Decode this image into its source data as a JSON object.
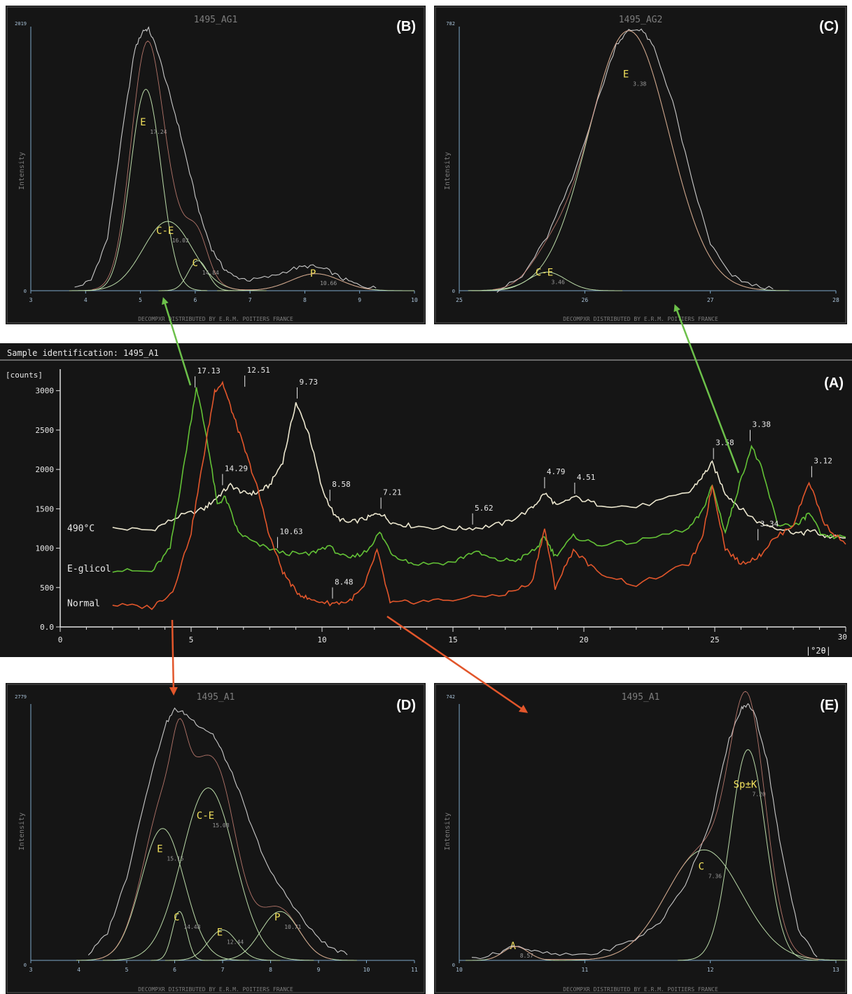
{
  "colors": {
    "background": "#151515",
    "frame": "#cfcfcf",
    "axis": "#7da8c9",
    "axis_text": "#a9c2d8",
    "title_text": "#7d7d7d",
    "peak_label": "#f2e15c",
    "normal": "#e2562b",
    "eglicol": "#63c236",
    "heated": "#ece7cf",
    "fit_curve": "#b9d9a7",
    "orange_arrow": "#e2562b",
    "green_arrow": "#6cc04a"
  },
  "footer_text": "DECOMPXR DISTRIBUTED BY E.R.M. POITIERS FRANCE",
  "chart_data": [
    {
      "id": "A",
      "type": "line",
      "panel_label": "(A)",
      "title": "Sample identification: 1495_A1",
      "ylabel": "[counts]",
      "xlabel": "|°2θ|",
      "xlim": [
        0,
        30
      ],
      "ylim": [
        0,
        3300
      ],
      "x_ticks": [
        0,
        5,
        10,
        15,
        20,
        25,
        30
      ],
      "y_ticks": [
        0,
        500,
        1000,
        1500,
        2000,
        2500,
        3000
      ],
      "y_tick_labels": [
        "0.0",
        "500",
        "1000",
        "1500",
        "2000",
        "2500",
        "3000"
      ],
      "grid": false,
      "series": [
        {
          "name": "490°C",
          "label_y": 1250,
          "x": [
            2,
            3.5,
            4.5,
            5.5,
            6,
            6.5,
            7,
            7.5,
            8,
            8.5,
            9,
            9.5,
            10,
            10.5,
            11,
            11.7,
            12.2,
            12.7,
            13.5,
            15,
            16,
            17,
            18,
            18.5,
            19,
            19.6,
            20.5,
            22,
            24,
            24.5,
            24.9,
            25.4,
            26,
            26.7,
            27.5,
            28.3,
            28.7,
            29.2,
            30
          ],
          "y": [
            1250,
            1230,
            1400,
            1500,
            1650,
            1800,
            1700,
            1700,
            1800,
            2100,
            2850,
            2450,
            1750,
            1400,
            1320,
            1380,
            1450,
            1320,
            1280,
            1250,
            1260,
            1320,
            1500,
            1700,
            1530,
            1650,
            1560,
            1520,
            1700,
            1900,
            2080,
            1700,
            1500,
            1320,
            1250,
            1180,
            1230,
            1150,
            1130
          ]
        },
        {
          "name": "E-glicol",
          "label_y": 740,
          "x": [
            2,
            3.5,
            4.2,
            4.7,
            5.2,
            5.6,
            6,
            6.3,
            6.8,
            7.5,
            8.5,
            9.5,
            10.2,
            11,
            11.7,
            12.2,
            12.7,
            13.5,
            15,
            15.8,
            16.6,
            17.5,
            18.2,
            18.5,
            18.9,
            19.6,
            20.5,
            22,
            24,
            24.5,
            24.9,
            25.4,
            25.8,
            26.4,
            26.8,
            27.4,
            28.2,
            28.6,
            29.1,
            30
          ],
          "y": [
            720,
            700,
            1000,
            2000,
            3050,
            2400,
            1550,
            1650,
            1200,
            1050,
            940,
            920,
            1030,
            860,
            960,
            1200,
            920,
            800,
            820,
            960,
            850,
            850,
            1000,
            1150,
            900,
            1150,
            1050,
            1080,
            1250,
            1450,
            1800,
            1200,
            1650,
            2300,
            2000,
            1300,
            1300,
            1450,
            1150,
            1140
          ]
        },
        {
          "name": "Normal",
          "label_y": 300,
          "x": [
            2,
            3.5,
            4.3,
            5,
            5.5,
            5.9,
            6.2,
            6.6,
            7,
            7.5,
            8,
            8.5,
            9,
            9.5,
            10.3,
            11,
            11.6,
            12.1,
            12.6,
            13.5,
            15,
            17,
            18,
            18.5,
            18.9,
            19.6,
            20.5,
            22,
            24,
            24.5,
            24.9,
            25.4,
            26,
            26.7,
            27.2,
            28,
            28.6,
            29.2,
            30
          ],
          "y": [
            280,
            250,
            450,
            1200,
            2200,
            3000,
            3100,
            2700,
            2300,
            1800,
            1150,
            700,
            450,
            350,
            300,
            320,
            500,
            980,
            300,
            320,
            350,
            420,
            550,
            1250,
            500,
            980,
            700,
            530,
            800,
            1100,
            1800,
            1000,
            800,
            900,
            1100,
            1300,
            1850,
            1300,
            1050
          ]
        }
      ],
      "annotations": [
        {
          "text": "17.13",
          "x": 5.15,
          "y": 3040
        },
        {
          "text": "14.29",
          "x": 6.2,
          "y": 1800
        },
        {
          "text": "12.51",
          "x": 7.05,
          "y": 3050
        },
        {
          "text": "9.73",
          "x": 9.05,
          "y": 2900
        },
        {
          "text": "10.63",
          "x": 8.3,
          "y": 1000
        },
        {
          "text": "8.58",
          "x": 10.3,
          "y": 1600
        },
        {
          "text": "8.48",
          "x": 10.4,
          "y": 360
        },
        {
          "text": "7.21",
          "x": 12.25,
          "y": 1500
        },
        {
          "text": "5.62",
          "x": 15.75,
          "y": 1300
        },
        {
          "text": "4.79",
          "x": 18.5,
          "y": 1760
        },
        {
          "text": "4.51",
          "x": 19.65,
          "y": 1690
        },
        {
          "text": "3.58",
          "x": 24.95,
          "y": 2130
        },
        {
          "text": "3.38",
          "x": 26.35,
          "y": 2360
        },
        {
          "text": "3.34",
          "x": 26.65,
          "y": 1100
        },
        {
          "text": "3.12",
          "x": 28.7,
          "y": 1900
        }
      ]
    },
    {
      "id": "B",
      "type": "line",
      "panel_label": "(B)",
      "title": "1495_AG1",
      "ylabel": "Intensity",
      "y_max_label": "2019",
      "y_min_label": "0",
      "xlim": [
        3,
        10
      ],
      "ylim": [
        0,
        2019
      ],
      "x_ticks": [
        3,
        4,
        5,
        6,
        7,
        8,
        9,
        10
      ],
      "profile": {
        "x": [
          3.8,
          4.1,
          4.4,
          4.7,
          4.9,
          5.05,
          5.15,
          5.3,
          5.5,
          5.7,
          5.9,
          6.1,
          6.3,
          6.5,
          6.7,
          7,
          7.4,
          7.8,
          8.1,
          8.4,
          8.7,
          9,
          9.3
        ],
        "y": [
          20,
          80,
          400,
          1300,
          1850,
          1990,
          2000,
          1850,
          1550,
          1250,
          900,
          560,
          320,
          180,
          110,
          80,
          110,
          170,
          190,
          160,
          90,
          40,
          20
        ]
      },
      "components": [
        {
          "label": "E",
          "value": "17.24",
          "center": 5.1,
          "height": 1540,
          "width": 0.28
        },
        {
          "label": "C-E",
          "value": "16.02",
          "center": 5.5,
          "height": 530,
          "width": 0.45
        },
        {
          "label": "C",
          "value": "14.84",
          "center": 6.05,
          "height": 230,
          "width": 0.18
        },
        {
          "label": "P",
          "value": "10.66",
          "center": 8.2,
          "height": 130,
          "width": 0.45
        }
      ]
    },
    {
      "id": "C",
      "type": "line",
      "panel_label": "(C)",
      "title": "1495_AG2",
      "ylabel": "Intensity",
      "y_max_label": "782",
      "y_min_label": "0",
      "xlim": [
        25,
        28
      ],
      "ylim": [
        0,
        782
      ],
      "x_ticks": [
        25,
        26,
        27,
        28
      ],
      "profile": {
        "x": [
          25.3,
          25.5,
          25.7,
          25.9,
          26.1,
          26.25,
          26.35,
          26.45,
          26.55,
          26.7,
          26.85,
          27,
          27.15,
          27.3,
          27.5
        ],
        "y": [
          0,
          40,
          160,
          330,
          560,
          730,
          770,
          775,
          720,
          560,
          330,
          140,
          50,
          20,
          5
        ]
      },
      "components": [
        {
          "label": "E",
          "value": "3.38",
          "center": 26.35,
          "height": 770,
          "width": 0.32
        },
        {
          "label": "C-E",
          "value": "3.46",
          "center": 25.7,
          "height": 55,
          "width": 0.15
        }
      ]
    },
    {
      "id": "D",
      "type": "line",
      "panel_label": "(D)",
      "title": "1495_A1",
      "ylabel": "Intensity",
      "y_max_label": "2779",
      "y_min_label": "0",
      "xlim": [
        3,
        11
      ],
      "ylim": [
        0,
        2779
      ],
      "x_ticks": [
        3,
        4,
        5,
        6,
        7,
        8,
        9,
        10,
        11
      ],
      "profile": {
        "x": [
          4.2,
          4.6,
          5,
          5.4,
          5.8,
          6,
          6.2,
          6.5,
          6.8,
          7,
          7.3,
          7.6,
          8,
          8.4,
          8.8,
          9.2,
          9.6
        ],
        "y": [
          60,
          300,
          900,
          1800,
          2550,
          2720,
          2680,
          2550,
          2450,
          2250,
          1900,
          1450,
          950,
          650,
          350,
          150,
          60
        ]
      },
      "components": [
        {
          "label": "E",
          "value": "15.15",
          "center": 5.75,
          "height": 1430,
          "width": 0.45
        },
        {
          "label": "C-E",
          "value": "15.08",
          "center": 6.7,
          "height": 1870,
          "width": 0.55
        },
        {
          "label": "C",
          "value": "14.48",
          "center": 6.1,
          "height": 530,
          "width": 0.15
        },
        {
          "label": "E",
          "value": "12.44",
          "center": 7.0,
          "height": 330,
          "width": 0.3
        },
        {
          "label": "P",
          "value": "10.71",
          "center": 8.2,
          "height": 530,
          "width": 0.4
        }
      ]
    },
    {
      "id": "E",
      "type": "line",
      "panel_label": "(E)",
      "title": "1495_A1",
      "ylabel": "Intensity",
      "y_max_label": "742",
      "y_min_label": "0",
      "xlim": [
        10,
        13
      ],
      "ylim": [
        0,
        742
      ],
      "x_ticks": [
        10,
        11,
        12,
        13
      ],
      "profile": {
        "x": [
          10.1,
          10.3,
          10.45,
          10.6,
          10.8,
          11.1,
          11.4,
          11.6,
          11.8,
          12,
          12.15,
          12.25,
          12.3,
          12.35,
          12.45,
          12.55,
          12.7,
          12.85
        ],
        "y": [
          5,
          20,
          45,
          25,
          15,
          20,
          60,
          110,
          220,
          400,
          640,
          730,
          740,
          720,
          580,
          350,
          90,
          10
        ]
      },
      "components": [
        {
          "label": "Sp±K",
          "value": "7.20",
          "center": 12.3,
          "height": 610,
          "width": 0.14
        },
        {
          "label": "C",
          "value": "7.36",
          "center": 11.95,
          "height": 320,
          "width": 0.3
        },
        {
          "label": "A",
          "value": "8.57",
          "center": 10.45,
          "height": 40,
          "width": 0.1
        }
      ]
    }
  ]
}
